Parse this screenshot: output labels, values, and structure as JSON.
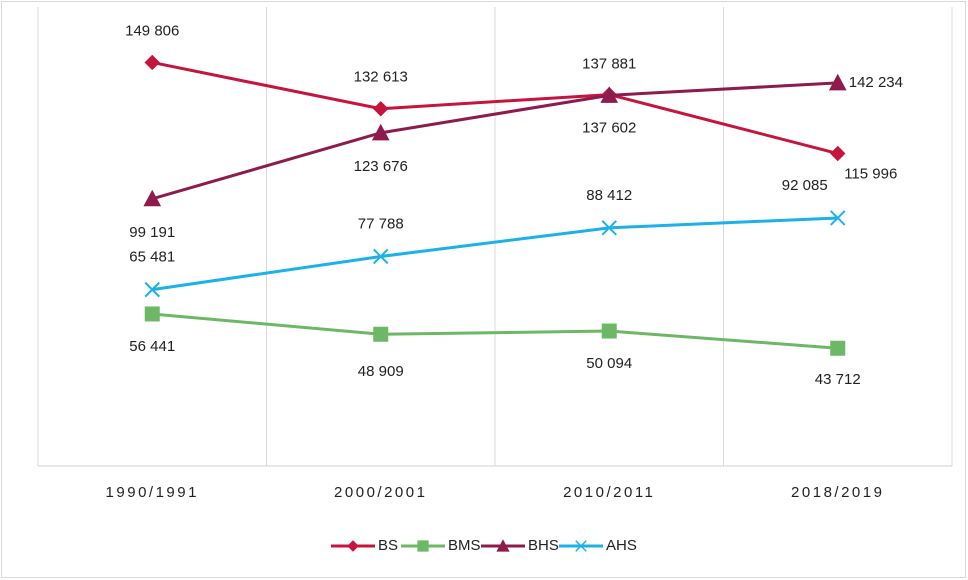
{
  "chart_data": {
    "type": "line",
    "categories": [
      "1990/1991",
      "2000/2001",
      "2010/2011",
      "2018/2019"
    ],
    "ylim": [
      0,
      160000
    ],
    "grid": true,
    "legend": "bottom",
    "series": [
      {
        "name": "BS",
        "color": "#c5143e",
        "marker": "diamond",
        "values": [
          149806,
          132613,
          137881,
          115996
        ],
        "value_labels": [
          "149 806",
          "132 613",
          "137 881",
          "115 996"
        ]
      },
      {
        "name": "BMS",
        "color": "#6cb865",
        "marker": "square",
        "values": [
          56441,
          48909,
          50094,
          43712
        ],
        "value_labels": [
          "56 441",
          "48 909",
          "50 094",
          "43 712"
        ]
      },
      {
        "name": "BHS",
        "color": "#8e1b4d",
        "marker": "triangle",
        "values": [
          99191,
          123676,
          137602,
          142234
        ],
        "value_labels": [
          "99 191",
          "123 676",
          "137 602",
          "142 234"
        ]
      },
      {
        "name": "AHS",
        "color": "#1cb1e9",
        "marker": "x",
        "values": [
          65481,
          77788,
          88412,
          92085
        ],
        "value_labels": [
          "65 481",
          "77 788",
          "88 412",
          "92 085"
        ]
      }
    ]
  }
}
